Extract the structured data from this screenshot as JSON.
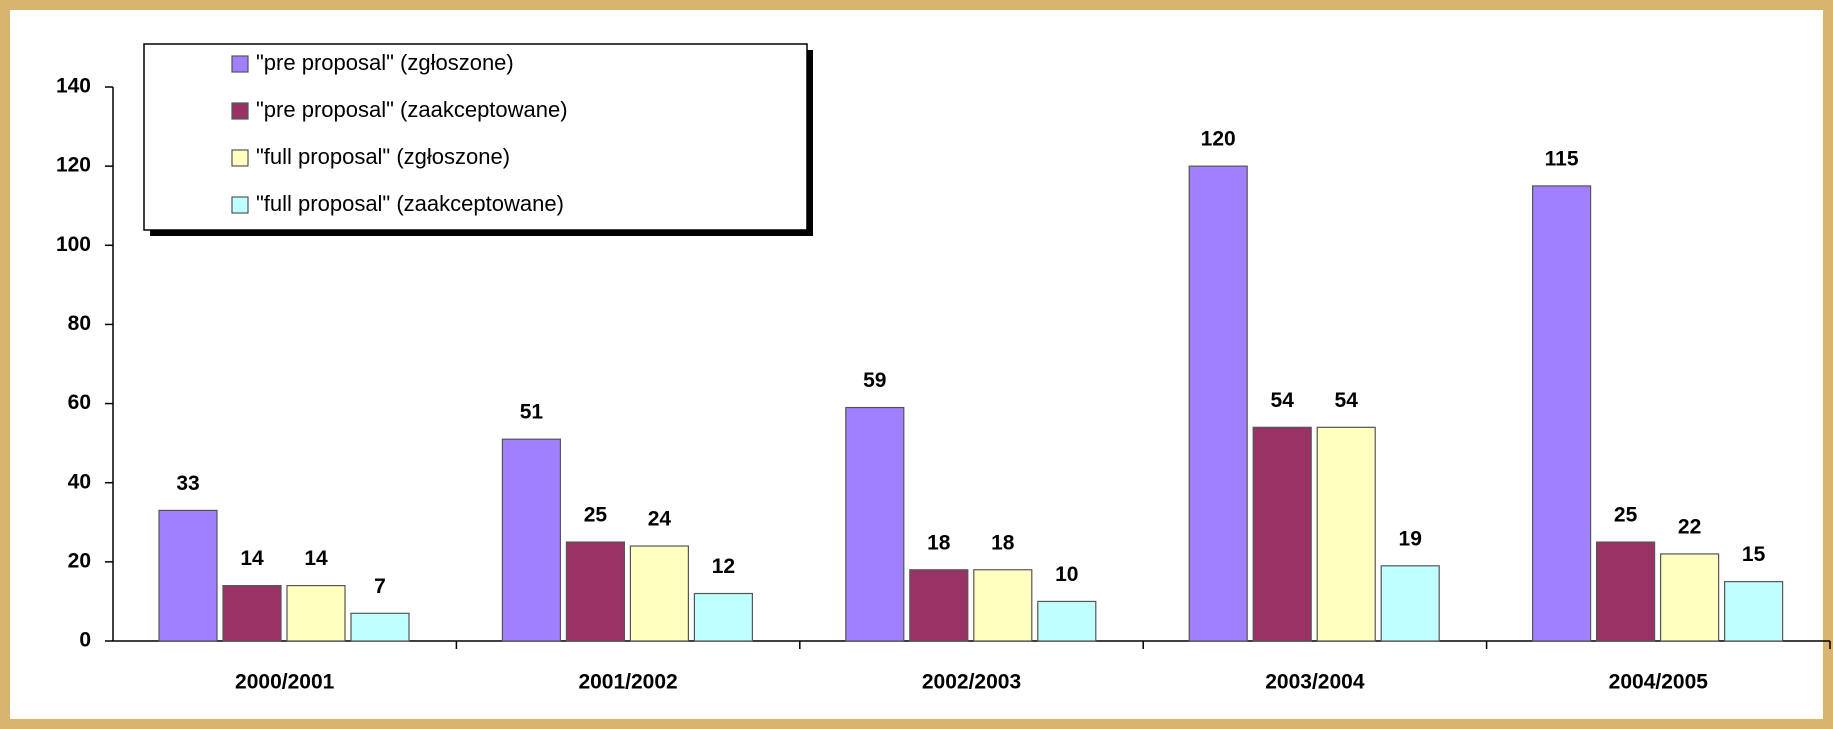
{
  "chart_data": {
    "type": "bar",
    "categories": [
      "2000/2001",
      "2001/2002",
      "2002/2003",
      "2003/2004",
      "2004/2005"
    ],
    "series": [
      {
        "name": "\"pre proposal\" (zgłoszone)",
        "color": "#a080ff",
        "values": [
          33,
          51,
          59,
          120,
          115
        ]
      },
      {
        "name": "\"pre proposal\" (zaakceptowane)",
        "color": "#993366",
        "values": [
          14,
          25,
          18,
          54,
          25
        ]
      },
      {
        "name": "\"full proposal\" (zgłoszone)",
        "color": "#ffffc0",
        "values": [
          14,
          24,
          18,
          54,
          22
        ]
      },
      {
        "name": "\"full proposal\" (zaakceptowane)",
        "color": "#c0ffff",
        "values": [
          7,
          12,
          10,
          19,
          15
        ]
      }
    ],
    "ylim": [
      0,
      140
    ],
    "yticks": [
      0,
      20,
      40,
      60,
      80,
      100,
      120,
      140
    ],
    "grid": false,
    "legend": "upper left"
  }
}
